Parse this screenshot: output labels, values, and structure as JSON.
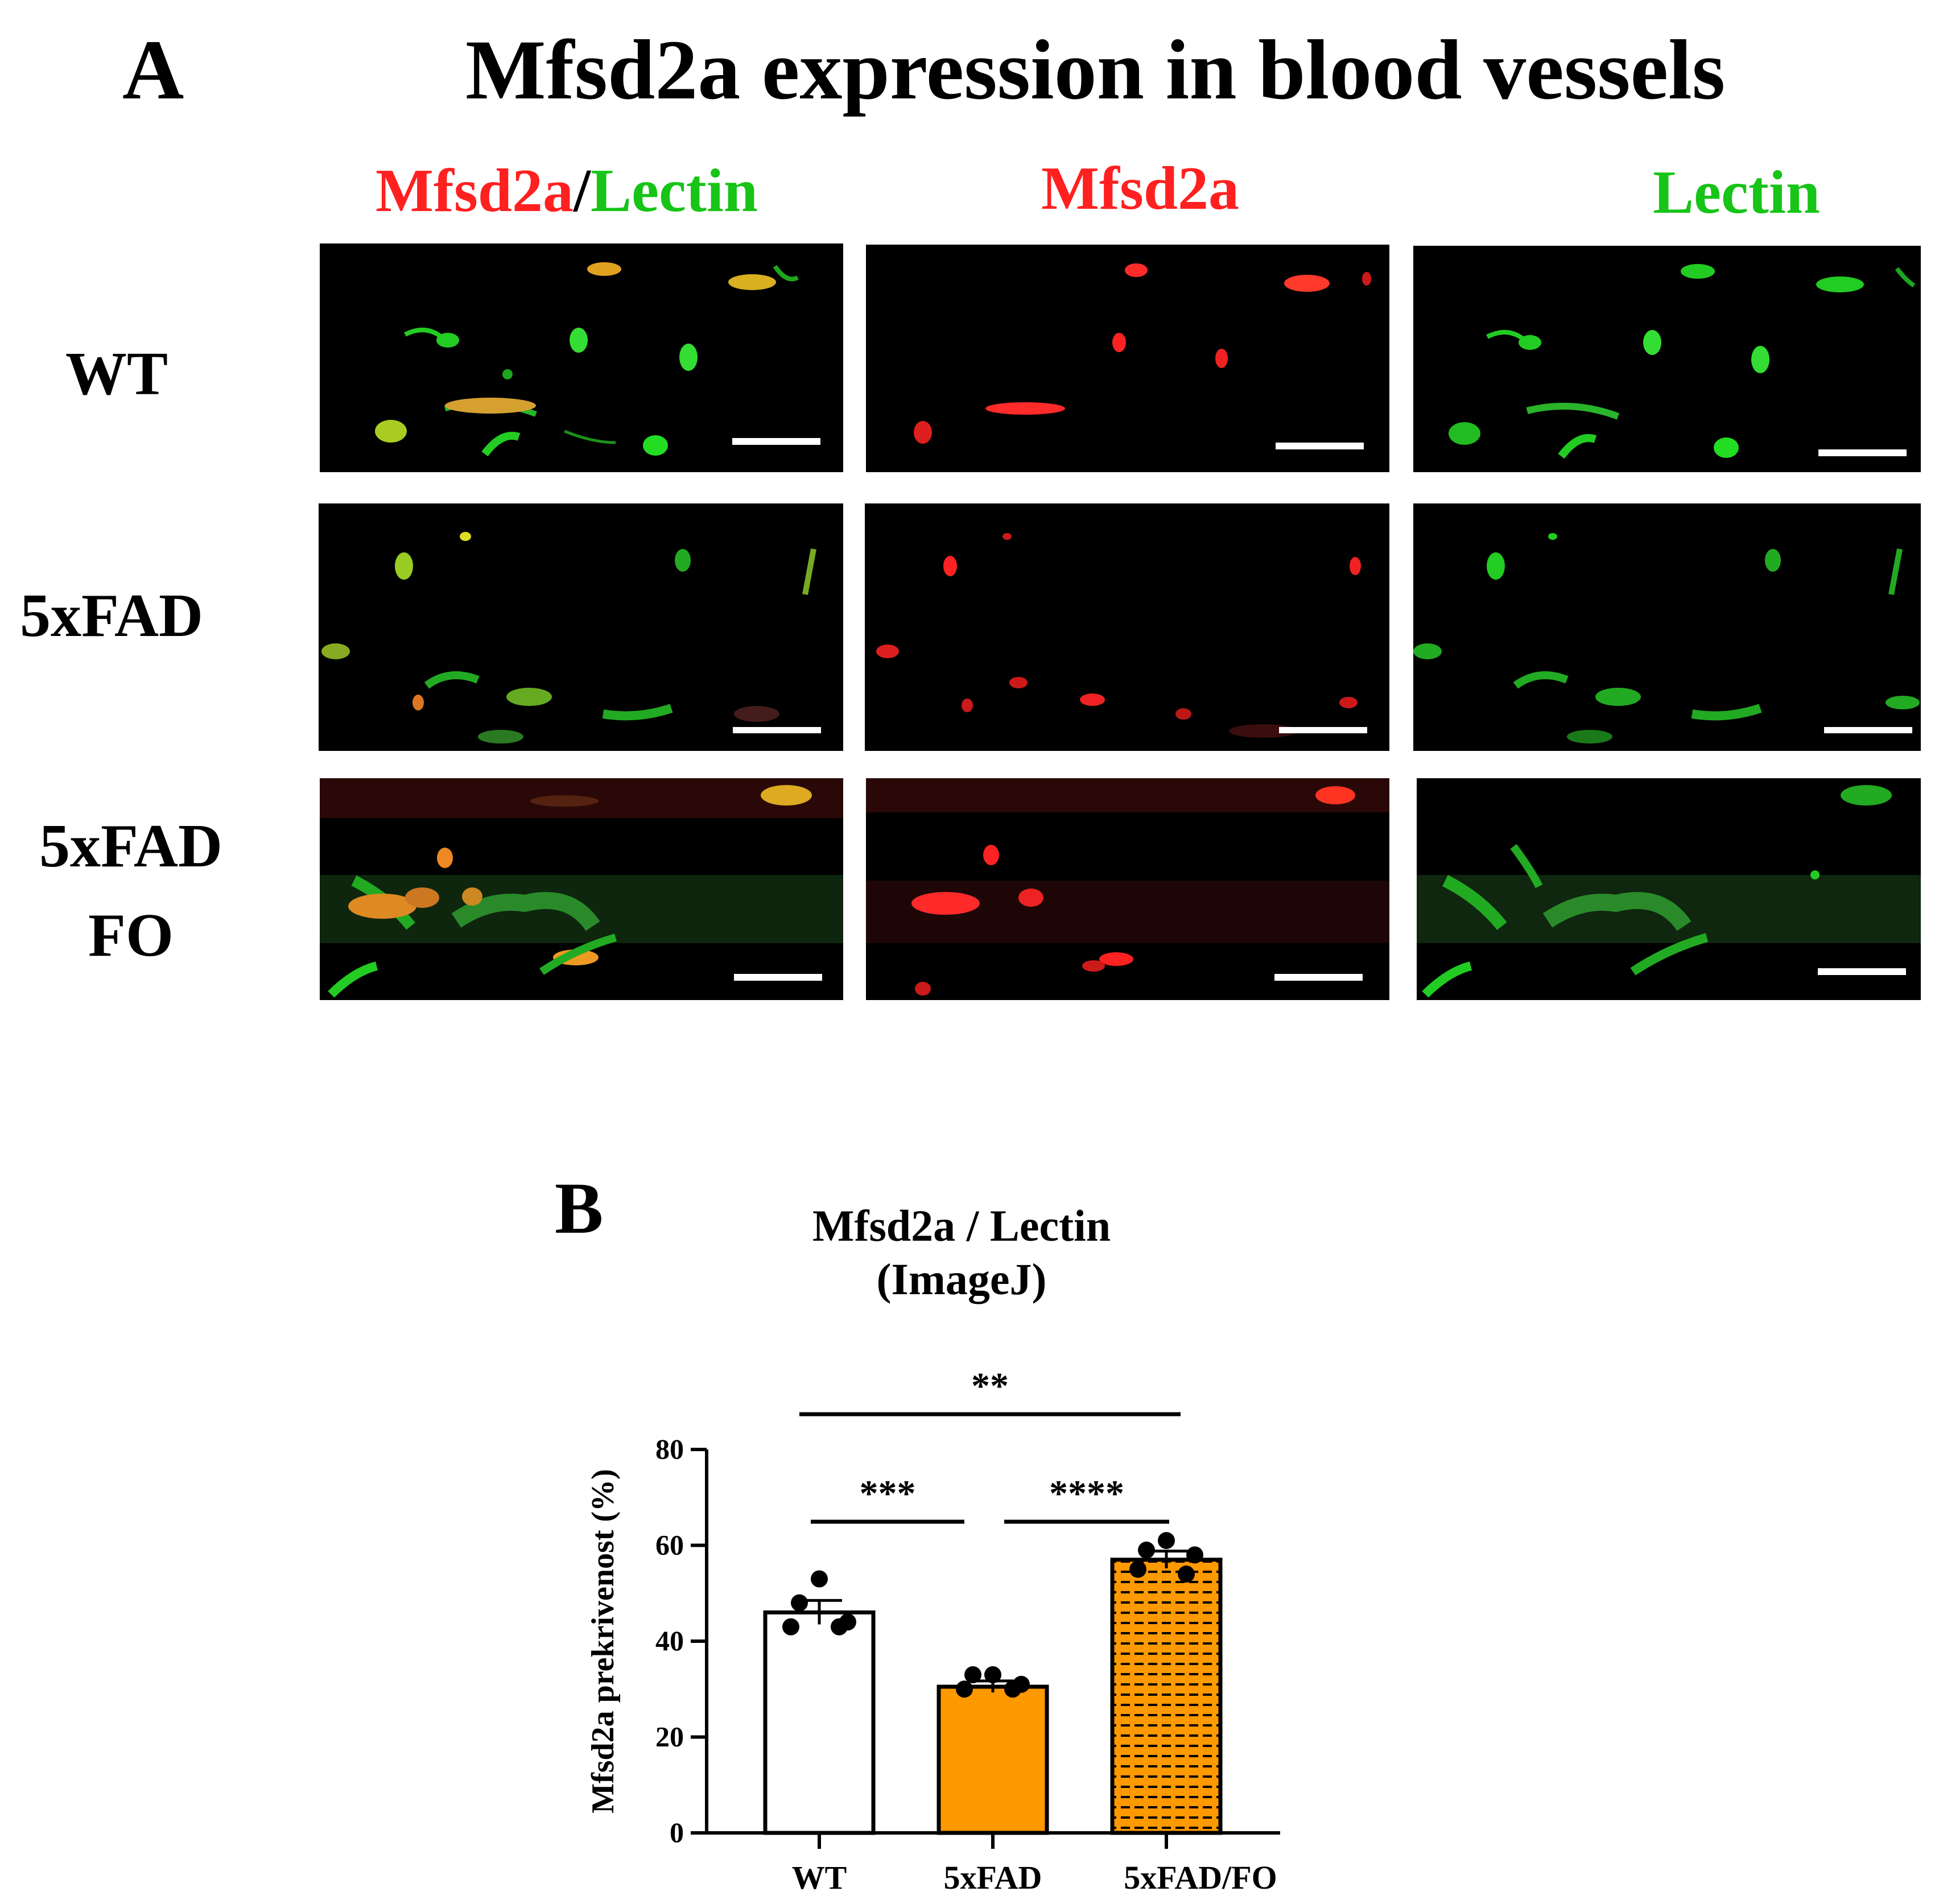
{
  "panel_a": {
    "letter": "A",
    "title": "Mfsd2a expression in blood vessels",
    "column_headers": {
      "merge_red": "Mfsd2a",
      "merge_slash": "/",
      "merge_green": "Lectin",
      "red": "Mfsd2a",
      "green": "Lectin"
    },
    "rows": [
      "WT",
      "5xFAD",
      "5xFAD",
      "FO"
    ],
    "colors": {
      "red": "#ff2020",
      "green": "#17c417",
      "background": "#000000",
      "scale_bar": "#ffffff"
    }
  },
  "panel_b": {
    "letter": "B",
    "title_line1": "Mfsd2a / Lectin",
    "title_line2": "(ImageJ)"
  },
  "chart_data": {
    "type": "bar",
    "title": "Mfsd2a / Lectin (ImageJ)",
    "xlabel": "",
    "ylabel": "Mfsd2a prekrivenost (%)",
    "ylim": [
      0,
      80
    ],
    "yticks": [
      0,
      20,
      40,
      60,
      80
    ],
    "categories": [
      "WT",
      "5xFAD",
      "5xFAD/FO"
    ],
    "values": [
      46,
      30.5,
      57
    ],
    "errors": [
      2.5,
      1.2,
      1.8
    ],
    "points": [
      [
        53,
        48,
        44,
        43,
        43
      ],
      [
        33,
        33,
        31,
        30,
        30
      ],
      [
        61,
        59,
        58,
        55,
        54
      ]
    ],
    "bar_fills": [
      "#ffffff",
      "#ff9900",
      "#ff9900"
    ],
    "bar_patterns": [
      "none",
      "none",
      "horizontal-dashes"
    ],
    "significance": [
      {
        "from": 0,
        "to": 2,
        "y": 87,
        "label": "**"
      },
      {
        "from": 0,
        "to": 1,
        "y": 65,
        "label": "***"
      },
      {
        "from": 1,
        "to": 2,
        "y": 65,
        "label": "****"
      }
    ],
    "grid": false,
    "legend": "none"
  }
}
